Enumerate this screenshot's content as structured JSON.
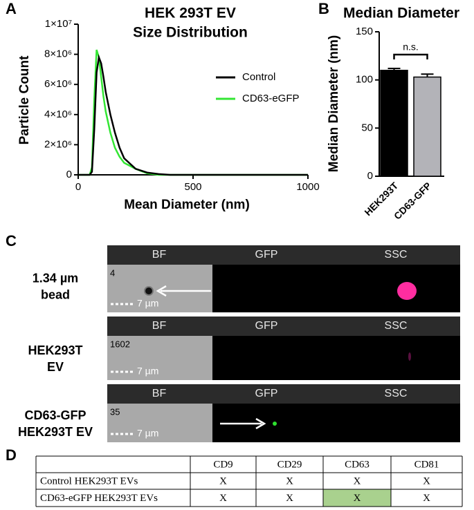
{
  "panel_labels": [
    "A",
    "B",
    "C",
    "D"
  ],
  "chart_data": [
    {
      "type": "line",
      "title": [
        "HEK 293T EV",
        "Size Distribution"
      ],
      "x_label": "Mean Diameter (nm)",
      "y_label": "Particle Count",
      "x": [
        0,
        50,
        60,
        70,
        80,
        90,
        100,
        110,
        120,
        140,
        160,
        180,
        200,
        250,
        300,
        350,
        400,
        500,
        1000
      ],
      "series": [
        {
          "name": "Control",
          "color": "#000000",
          "values": [
            0,
            0,
            200000,
            3000000,
            6800000,
            7800000,
            7400000,
            6500000,
            5500000,
            4000000,
            2800000,
            1800000,
            1100000,
            400000,
            150000,
            50000,
            0,
            0,
            0
          ]
        },
        {
          "name": "CD63-eGFP",
          "color": "#33e633",
          "values": [
            0,
            0,
            500000,
            5000000,
            8300000,
            7800000,
            6500000,
            5200000,
            4200000,
            2800000,
            1800000,
            1200000,
            800000,
            400000,
            100000,
            0,
            0,
            0,
            0
          ]
        }
      ],
      "xlim": [
        0,
        1000
      ],
      "xticks": [
        0,
        500,
        1000
      ],
      "ylim": [
        0,
        10000000
      ],
      "yticks": [
        0,
        {
          "value": 2000000,
          "label": "2×10⁶"
        },
        {
          "value": 4000000,
          "label": "4×10⁶"
        },
        {
          "value": 6000000,
          "label": "6×10⁶"
        },
        {
          "value": 8000000,
          "label": "8×10⁶"
        },
        {
          "value": 10000000,
          "label": "1×10⁷"
        }
      ],
      "legend": "right"
    },
    {
      "type": "bar",
      "title": "Median Diameter",
      "y_label": "Median Diameter (nm)",
      "categories": [
        "HEK293T",
        "CD63-GFP"
      ],
      "values": [
        110,
        103
      ],
      "errors": [
        2,
        3
      ],
      "colors": [
        "#000000",
        "#b3b3b8"
      ],
      "annotation": "n.s.",
      "ylim": [
        0,
        150
      ],
      "yticks": [
        0,
        50,
        100,
        150
      ]
    }
  ],
  "imaging": {
    "channels": [
      "BF",
      "GFP",
      "SSC"
    ],
    "scale_bar": "7 µm",
    "rows": [
      {
        "label": [
          "1.34 µm",
          "bead"
        ],
        "count": 4
      },
      {
        "label": [
          "HEK293T",
          "EV"
        ],
        "count": 1602
      },
      {
        "label": [
          "CD63-GFP",
          "HEK293T EV"
        ],
        "count": 35
      }
    ]
  },
  "table": {
    "columns": [
      "CD9",
      "CD29",
      "CD63",
      "CD81"
    ],
    "rows": [
      [
        "Control HEK293T EVs",
        "X",
        "X",
        "X",
        "X"
      ],
      [
        "CD63-eGFP HEK293T EVs",
        "X",
        "X",
        "X",
        "X"
      ]
    ]
  }
}
